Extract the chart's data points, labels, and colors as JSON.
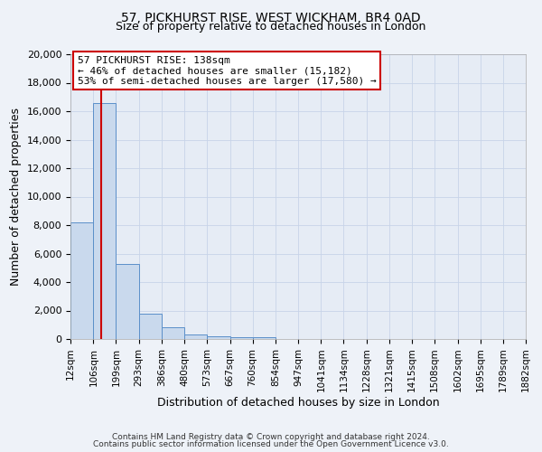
{
  "title": "57, PICKHURST RISE, WEST WICKHAM, BR4 0AD",
  "subtitle": "Size of property relative to detached houses in London",
  "xlabel": "Distribution of detached houses by size in London",
  "ylabel": "Number of detached properties",
  "bin_labels": [
    "12sqm",
    "106sqm",
    "199sqm",
    "293sqm",
    "386sqm",
    "480sqm",
    "573sqm",
    "667sqm",
    "760sqm",
    "854sqm",
    "947sqm",
    "1041sqm",
    "1134sqm",
    "1228sqm",
    "1321sqm",
    "1415sqm",
    "1508sqm",
    "1602sqm",
    "1695sqm",
    "1789sqm",
    "1882sqm"
  ],
  "bar_values": [
    8200,
    16600,
    5300,
    1800,
    800,
    300,
    200,
    100,
    100,
    0,
    0,
    0,
    0,
    0,
    0,
    0,
    0,
    0,
    0,
    0
  ],
  "bar_color": "#c9d9ed",
  "bar_edge_color": "#5b8fc9",
  "ylim": [
    0,
    20000
  ],
  "yticks": [
    0,
    2000,
    4000,
    6000,
    8000,
    10000,
    12000,
    14000,
    16000,
    18000,
    20000
  ],
  "property_line_x": 138,
  "bin_edges_sqm": [
    12,
    106,
    199,
    293,
    386,
    480,
    573,
    667,
    760,
    854,
    947,
    1041,
    1134,
    1228,
    1321,
    1415,
    1508,
    1602,
    1695,
    1789,
    1882
  ],
  "annotation_title": "57 PICKHURST RISE: 138sqm",
  "annotation_line1": "← 46% of detached houses are smaller (15,182)",
  "annotation_line2": "53% of semi-detached houses are larger (17,580) →",
  "annotation_box_color": "#ffffff",
  "annotation_box_edge": "#cc0000",
  "red_line_color": "#cc0000",
  "footer1": "Contains HM Land Registry data © Crown copyright and database right 2024.",
  "footer2": "Contains public sector information licensed under the Open Government Licence v3.0.",
  "background_color": "#eef2f8",
  "plot_background": "#e6ecf5"
}
